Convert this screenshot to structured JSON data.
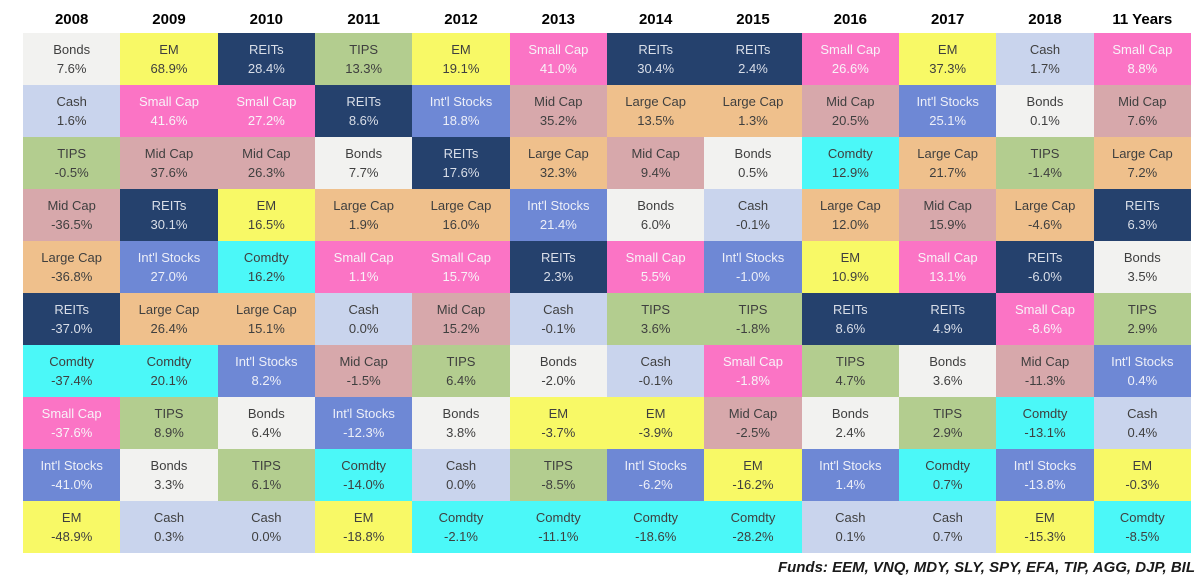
{
  "footer": {
    "funds_note": "Funds: EEM, VNQ, MDY, SLY, SPY, EFA, TIP, AGG, DJP, BIL"
  },
  "chart_data": {
    "type": "table",
    "layout": "asset-class-returns-quilt; columns are years, cells ranked best-to-worst top-to-bottom",
    "asset_styles": {
      "Bonds": {
        "bg": "#F2F2F0",
        "fg": "#3F3F3F"
      },
      "Cash": {
        "bg": "#C9D4ED",
        "fg": "#3F3F3F"
      },
      "TIPS": {
        "bg": "#B3CD8F",
        "fg": "#3F3F3F"
      },
      "Mid Cap": {
        "bg": "#D7A8AB",
        "fg": "#3F3F3F"
      },
      "Large Cap": {
        "bg": "#EFC08C",
        "fg": "#3F3F3F"
      },
      "REITs": {
        "bg": "#25416D",
        "fg": "#D9DEE8"
      },
      "Comdty": {
        "bg": "#4BF8F8",
        "fg": "#3F3F3F"
      },
      "Small Cap": {
        "bg": "#FB74C5",
        "fg": "#F8F3F8"
      },
      "Int'l Stocks": {
        "bg": "#6E88D5",
        "fg": "#EDEFF8"
      },
      "EM": {
        "bg": "#F8F966",
        "fg": "#3F3F3F"
      }
    },
    "columns": [
      {
        "year": "2008",
        "cells": [
          {
            "asset": "Bonds",
            "value": "7.6%"
          },
          {
            "asset": "Cash",
            "value": "1.6%"
          },
          {
            "asset": "TIPS",
            "value": "-0.5%"
          },
          {
            "asset": "Mid Cap",
            "value": "-36.5%"
          },
          {
            "asset": "Large Cap",
            "value": "-36.8%"
          },
          {
            "asset": "REITs",
            "value": "-37.0%"
          },
          {
            "asset": "Comdty",
            "value": "-37.4%"
          },
          {
            "asset": "Small Cap",
            "value": "-37.6%"
          },
          {
            "asset": "Int'l Stocks",
            "value": "-41.0%"
          },
          {
            "asset": "EM",
            "value": "-48.9%"
          }
        ]
      },
      {
        "year": "2009",
        "cells": [
          {
            "asset": "EM",
            "value": "68.9%"
          },
          {
            "asset": "Small Cap",
            "value": "41.6%"
          },
          {
            "asset": "Mid Cap",
            "value": "37.6%"
          },
          {
            "asset": "REITs",
            "value": "30.1%"
          },
          {
            "asset": "Int'l Stocks",
            "value": "27.0%"
          },
          {
            "asset": "Large Cap",
            "value": "26.4%"
          },
          {
            "asset": "Comdty",
            "value": "20.1%"
          },
          {
            "asset": "TIPS",
            "value": "8.9%"
          },
          {
            "asset": "Bonds",
            "value": "3.3%"
          },
          {
            "asset": "Cash",
            "value": "0.3%"
          }
        ]
      },
      {
        "year": "2010",
        "cells": [
          {
            "asset": "REITs",
            "value": "28.4%"
          },
          {
            "asset": "Small Cap",
            "value": "27.2%"
          },
          {
            "asset": "Mid Cap",
            "value": "26.3%"
          },
          {
            "asset": "EM",
            "value": "16.5%"
          },
          {
            "asset": "Comdty",
            "value": "16.2%"
          },
          {
            "asset": "Large Cap",
            "value": "15.1%"
          },
          {
            "asset": "Int'l Stocks",
            "value": "8.2%"
          },
          {
            "asset": "Bonds",
            "value": "6.4%"
          },
          {
            "asset": "TIPS",
            "value": "6.1%"
          },
          {
            "asset": "Cash",
            "value": "0.0%"
          }
        ]
      },
      {
        "year": "2011",
        "cells": [
          {
            "asset": "TIPS",
            "value": "13.3%"
          },
          {
            "asset": "REITs",
            "value": "8.6%"
          },
          {
            "asset": "Bonds",
            "value": "7.7%"
          },
          {
            "asset": "Large Cap",
            "value": "1.9%"
          },
          {
            "asset": "Small Cap",
            "value": "1.1%"
          },
          {
            "asset": "Cash",
            "value": "0.0%"
          },
          {
            "asset": "Mid Cap",
            "value": "-1.5%"
          },
          {
            "asset": "Int'l Stocks",
            "value": "-12.3%"
          },
          {
            "asset": "Comdty",
            "value": "-14.0%"
          },
          {
            "asset": "EM",
            "value": "-18.8%"
          }
        ]
      },
      {
        "year": "2012",
        "cells": [
          {
            "asset": "EM",
            "value": "19.1%"
          },
          {
            "asset": "Int'l Stocks",
            "value": "18.8%"
          },
          {
            "asset": "REITs",
            "value": "17.6%"
          },
          {
            "asset": "Large Cap",
            "value": "16.0%"
          },
          {
            "asset": "Small Cap",
            "value": "15.7%"
          },
          {
            "asset": "Mid Cap",
            "value": "15.2%"
          },
          {
            "asset": "TIPS",
            "value": "6.4%"
          },
          {
            "asset": "Bonds",
            "value": "3.8%"
          },
          {
            "asset": "Cash",
            "value": "0.0%"
          },
          {
            "asset": "Comdty",
            "value": "-2.1%"
          }
        ]
      },
      {
        "year": "2013",
        "cells": [
          {
            "asset": "Small Cap",
            "value": "41.0%"
          },
          {
            "asset": "Mid Cap",
            "value": "35.2%"
          },
          {
            "asset": "Large Cap",
            "value": "32.3%"
          },
          {
            "asset": "Int'l Stocks",
            "value": "21.4%"
          },
          {
            "asset": "REITs",
            "value": "2.3%"
          },
          {
            "asset": "Cash",
            "value": "-0.1%"
          },
          {
            "asset": "Bonds",
            "value": "-2.0%"
          },
          {
            "asset": "EM",
            "value": "-3.7%"
          },
          {
            "asset": "TIPS",
            "value": "-8.5%"
          },
          {
            "asset": "Comdty",
            "value": "-11.1%"
          }
        ]
      },
      {
        "year": "2014",
        "cells": [
          {
            "asset": "REITs",
            "value": "30.4%"
          },
          {
            "asset": "Large Cap",
            "value": "13.5%"
          },
          {
            "asset": "Mid Cap",
            "value": "9.4%"
          },
          {
            "asset": "Bonds",
            "value": "6.0%"
          },
          {
            "asset": "Small Cap",
            "value": "5.5%"
          },
          {
            "asset": "TIPS",
            "value": "3.6%"
          },
          {
            "asset": "Cash",
            "value": "-0.1%"
          },
          {
            "asset": "EM",
            "value": "-3.9%"
          },
          {
            "asset": "Int'l Stocks",
            "value": "-6.2%"
          },
          {
            "asset": "Comdty",
            "value": "-18.6%"
          }
        ]
      },
      {
        "year": "2015",
        "cells": [
          {
            "asset": "REITs",
            "value": "2.4%"
          },
          {
            "asset": "Large Cap",
            "value": "1.3%"
          },
          {
            "asset": "Bonds",
            "value": "0.5%"
          },
          {
            "asset": "Cash",
            "value": "-0.1%"
          },
          {
            "asset": "Int'l Stocks",
            "value": "-1.0%"
          },
          {
            "asset": "TIPS",
            "value": "-1.8%"
          },
          {
            "asset": "Small Cap",
            "value": "-1.8%"
          },
          {
            "asset": "Mid Cap",
            "value": "-2.5%"
          },
          {
            "asset": "EM",
            "value": "-16.2%"
          },
          {
            "asset": "Comdty",
            "value": "-28.2%"
          }
        ]
      },
      {
        "year": "2016",
        "cells": [
          {
            "asset": "Small Cap",
            "value": "26.6%"
          },
          {
            "asset": "Mid Cap",
            "value": "20.5%"
          },
          {
            "asset": "Comdty",
            "value": "12.9%"
          },
          {
            "asset": "Large Cap",
            "value": "12.0%"
          },
          {
            "asset": "EM",
            "value": "10.9%"
          },
          {
            "asset": "REITs",
            "value": "8.6%"
          },
          {
            "asset": "TIPS",
            "value": "4.7%"
          },
          {
            "asset": "Bonds",
            "value": "2.4%"
          },
          {
            "asset": "Int'l Stocks",
            "value": "1.4%"
          },
          {
            "asset": "Cash",
            "value": "0.1%"
          }
        ]
      },
      {
        "year": "2017",
        "cells": [
          {
            "asset": "EM",
            "value": "37.3%"
          },
          {
            "asset": "Int'l Stocks",
            "value": "25.1%"
          },
          {
            "asset": "Large Cap",
            "value": "21.7%"
          },
          {
            "asset": "Mid Cap",
            "value": "15.9%"
          },
          {
            "asset": "Small Cap",
            "value": "13.1%"
          },
          {
            "asset": "REITs",
            "value": "4.9%"
          },
          {
            "asset": "Bonds",
            "value": "3.6%"
          },
          {
            "asset": "TIPS",
            "value": "2.9%"
          },
          {
            "asset": "Comdty",
            "value": "0.7%"
          },
          {
            "asset": "Cash",
            "value": "0.7%"
          }
        ]
      },
      {
        "year": "2018",
        "cells": [
          {
            "asset": "Cash",
            "value": "1.7%"
          },
          {
            "asset": "Bonds",
            "value": "0.1%"
          },
          {
            "asset": "TIPS",
            "value": "-1.4%"
          },
          {
            "asset": "Large Cap",
            "value": "-4.6%"
          },
          {
            "asset": "REITs",
            "value": "-6.0%"
          },
          {
            "asset": "Small Cap",
            "value": "-8.6%"
          },
          {
            "asset": "Mid Cap",
            "value": "-11.3%"
          },
          {
            "asset": "Comdty",
            "value": "-13.1%"
          },
          {
            "asset": "Int'l Stocks",
            "value": "-13.8%"
          },
          {
            "asset": "EM",
            "value": "-15.3%"
          }
        ]
      },
      {
        "year": "11 Years",
        "cells": [
          {
            "asset": "Small Cap",
            "value": "8.8%"
          },
          {
            "asset": "Mid Cap",
            "value": "7.6%"
          },
          {
            "asset": "Large Cap",
            "value": "7.2%"
          },
          {
            "asset": "REITs",
            "value": "6.3%"
          },
          {
            "asset": "Bonds",
            "value": "3.5%"
          },
          {
            "asset": "TIPS",
            "value": "2.9%"
          },
          {
            "asset": "Int'l Stocks",
            "value": "0.4%"
          },
          {
            "asset": "Cash",
            "value": "0.4%"
          },
          {
            "asset": "EM",
            "value": "-0.3%"
          },
          {
            "asset": "Comdty",
            "value": "-8.5%"
          }
        ]
      }
    ]
  }
}
